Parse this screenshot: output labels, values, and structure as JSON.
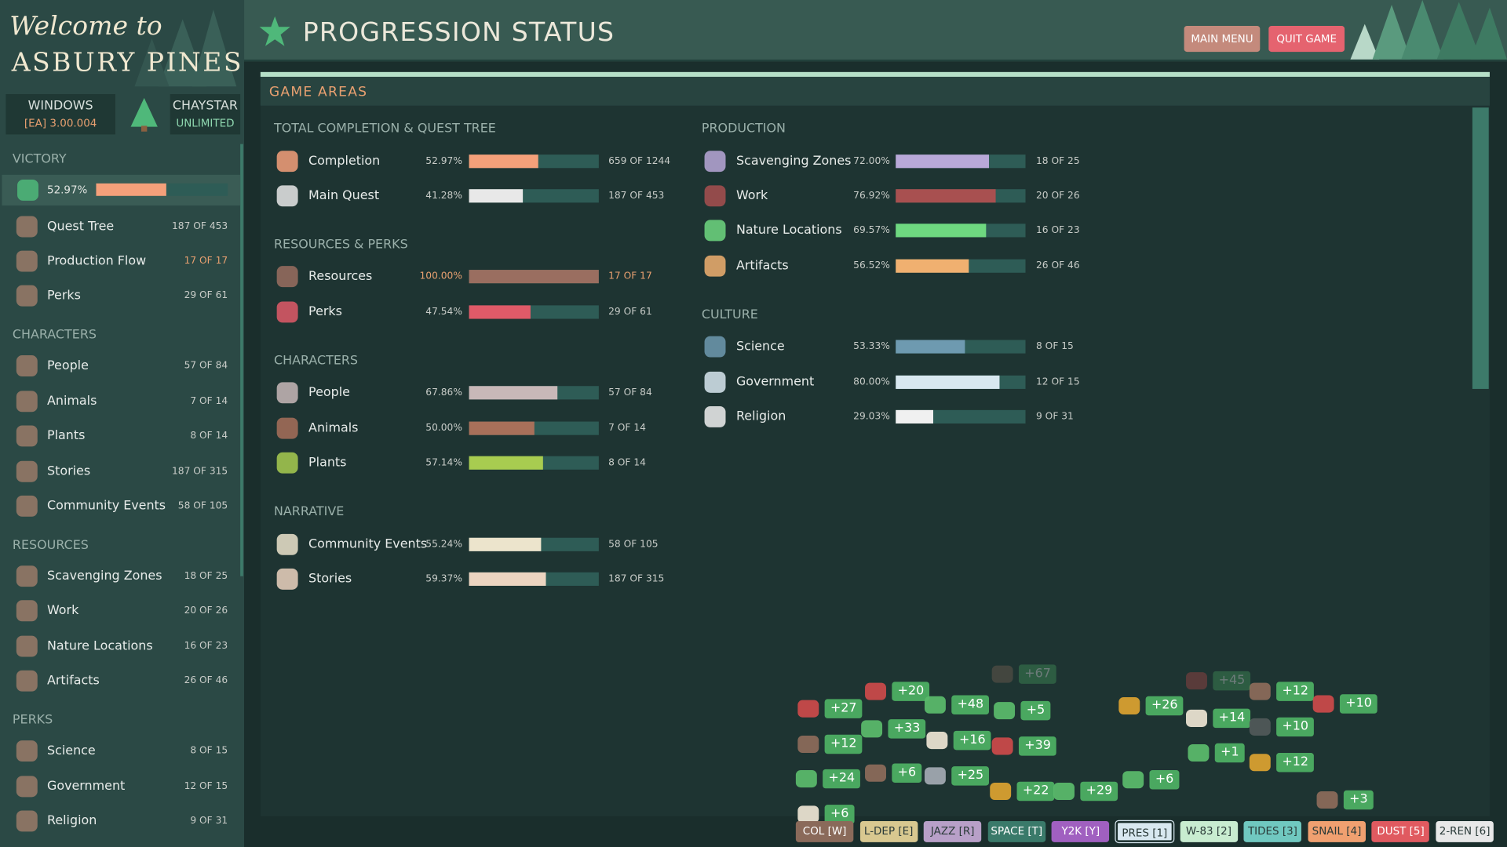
{
  "logo": {
    "line1": "Welcome to",
    "line2": "ASBURY PINES"
  },
  "build": {
    "platform": "WINDOWS",
    "version": "[EA] 3.00.004",
    "store": "CHAYSTAR",
    "edition": "UNLIMITED"
  },
  "header": {
    "title": "PROGRESSION STATUS",
    "buttons": [
      {
        "label": "MAIN MENU",
        "color": "#c48a7c"
      },
      {
        "label": "QUIT GAME",
        "color": "#e5636f"
      }
    ]
  },
  "sidebar": {
    "sections": [
      {
        "title": "VICTORY",
        "progress": {
          "value": 52.97,
          "label": "52.97%",
          "color": "#f4a07a"
        },
        "items": [
          {
            "label": "Quest Tree",
            "count": "187 OF 453"
          },
          {
            "label": "Production Flow",
            "count": "17 OF 17",
            "complete": true
          },
          {
            "label": "Perks",
            "count": "29 OF 61"
          }
        ]
      },
      {
        "title": "CHARACTERS",
        "items": [
          {
            "label": "People",
            "count": "57 OF 84"
          },
          {
            "label": "Animals",
            "count": "7 OF 14"
          },
          {
            "label": "Plants",
            "count": "8 OF 14"
          },
          {
            "label": "Stories",
            "count": "187 OF 315"
          },
          {
            "label": "Community Events",
            "count": "58 OF 105"
          }
        ]
      },
      {
        "title": "RESOURCES",
        "items": [
          {
            "label": "Scavenging Zones",
            "count": "18 OF 25"
          },
          {
            "label": "Work",
            "count": "20 OF 26"
          },
          {
            "label": "Nature Locations",
            "count": "16 OF 23"
          },
          {
            "label": "Artifacts",
            "count": "26 OF 46"
          }
        ]
      },
      {
        "title": "PERKS",
        "items": [
          {
            "label": "Science",
            "count": "8 OF 15"
          },
          {
            "label": "Government",
            "count": "12 OF 15"
          },
          {
            "label": "Religion",
            "count": "9 OF 31"
          }
        ]
      }
    ]
  },
  "panel": {
    "title": "GAME AREAS",
    "columns": [
      [
        {
          "title": "TOTAL COMPLETION & QUEST TREE",
          "rows": [
            {
              "label": "Completion",
              "percent": {
                "value": 52.97,
                "label": "52.97%"
              },
              "count": "659 OF 1244",
              "color": "#f4a07a"
            },
            {
              "label": "Main Quest",
              "percent": {
                "value": 41.28,
                "label": "41.28%"
              },
              "count": "187 OF 453",
              "color": "#e8e8e8"
            }
          ]
        },
        {
          "title": "RESOURCES & PERKS",
          "rows": [
            {
              "label": "Resources",
              "percent": {
                "value": 100,
                "label": "100.00%"
              },
              "count": "17 OF 17",
              "color": "#9a6e60",
              "complete": true
            },
            {
              "label": "Perks",
              "percent": {
                "value": 47.54,
                "label": "47.54%"
              },
              "count": "29 OF 61",
              "color": "#e05a68"
            }
          ]
        },
        {
          "title": "CHARACTERS",
          "rows": [
            {
              "label": "People",
              "percent": {
                "value": 67.86,
                "label": "67.86%"
              },
              "count": "57 OF 84",
              "color": "#c8b8b8"
            },
            {
              "label": "Animals",
              "percent": {
                "value": 50,
                "label": "50.00%"
              },
              "count": "7 OF 14",
              "color": "#a8705a"
            },
            {
              "label": "Plants",
              "percent": {
                "value": 57.14,
                "label": "57.14%"
              },
              "count": "8 OF 14",
              "color": "#a8cc50"
            }
          ]
        },
        {
          "title": "NARRATIVE",
          "rows": [
            {
              "label": "Community Events",
              "percent": {
                "value": 55.24,
                "label": "55.24%"
              },
              "count": "58 OF 105",
              "color": "#ece4cc"
            },
            {
              "label": "Stories",
              "percent": {
                "value": 59.37,
                "label": "59.37%"
              },
              "count": "187 OF 315",
              "color": "#ecd4c0"
            }
          ]
        }
      ],
      [
        {
          "title": "PRODUCTION",
          "rows": [
            {
              "label": "Scavenging Zones",
              "percent": {
                "value": 72,
                "label": "72.00%"
              },
              "count": "18 OF 25",
              "color": "#b8a8d8"
            },
            {
              "label": "Work",
              "percent": {
                "value": 76.92,
                "label": "76.92%"
              },
              "count": "20 OF 26",
              "color": "#a85050"
            },
            {
              "label": "Nature Locations",
              "percent": {
                "value": 69.57,
                "label": "69.57%"
              },
              "count": "16 OF 23",
              "color": "#6ed880"
            },
            {
              "label": "Artifacts",
              "percent": {
                "value": 56.52,
                "label": "56.52%"
              },
              "count": "26 OF 46",
              "color": "#f0b070"
            }
          ]
        },
        {
          "title": "CULTURE",
          "rows": [
            {
              "label": "Science",
              "percent": {
                "value": 53.33,
                "label": "53.33%"
              },
              "count": "8 OF 15",
              "color": "#6e9ab0"
            },
            {
              "label": "Government",
              "percent": {
                "value": 80,
                "label": "80.00%"
              },
              "count": "12 OF 15",
              "color": "#d8e8f0"
            },
            {
              "label": "Religion",
              "percent": {
                "value": 29.03,
                "label": "29.03%"
              },
              "count": "9 OF 31",
              "color": "#f0f0f0"
            }
          ]
        }
      ]
    ]
  },
  "popups": [
    {
      "text": "+20"
    },
    {
      "text": "+27"
    },
    {
      "text": "+48"
    },
    {
      "text": "+5"
    },
    {
      "text": "+33"
    },
    {
      "text": "+12"
    },
    {
      "text": "+16"
    },
    {
      "text": "+39"
    },
    {
      "text": "+24"
    },
    {
      "text": "+6"
    },
    {
      "text": "+25"
    },
    {
      "text": "+22"
    },
    {
      "text": "+29"
    },
    {
      "text": "+6"
    },
    {
      "text": "+26"
    },
    {
      "text": "+14"
    },
    {
      "text": "+1"
    },
    {
      "text": "+12"
    },
    {
      "text": "+10"
    },
    {
      "text": "+12"
    },
    {
      "text": "+10"
    },
    {
      "text": "+45"
    },
    {
      "text": "+3"
    },
    {
      "text": "+6"
    },
    {
      "text": "+67"
    }
  ],
  "tabs": [
    {
      "label": "COL [W]",
      "color": "#8a6a5a"
    },
    {
      "label": "L-DEP [E]",
      "color": "#d8c890"
    },
    {
      "label": "JAZZ [R]",
      "color": "#b8a0c8"
    },
    {
      "label": "SPACE [T]",
      "color": "#3a7a6a"
    },
    {
      "label": "Y2K [Y]",
      "color": "#a060c0"
    },
    {
      "label": "PRES [1]",
      "color": "#d8e8f0",
      "active": true
    },
    {
      "label": "W-83 [2]",
      "color": "#c8ecd0"
    },
    {
      "label": "TIDES [3]",
      "color": "#70c8c0"
    },
    {
      "label": "SNAIL [4]",
      "color": "#f0a070"
    },
    {
      "label": "DUST [5]",
      "color": "#e05a60"
    },
    {
      "label": "2-REN [6]",
      "color": "#e8e8e8"
    }
  ]
}
